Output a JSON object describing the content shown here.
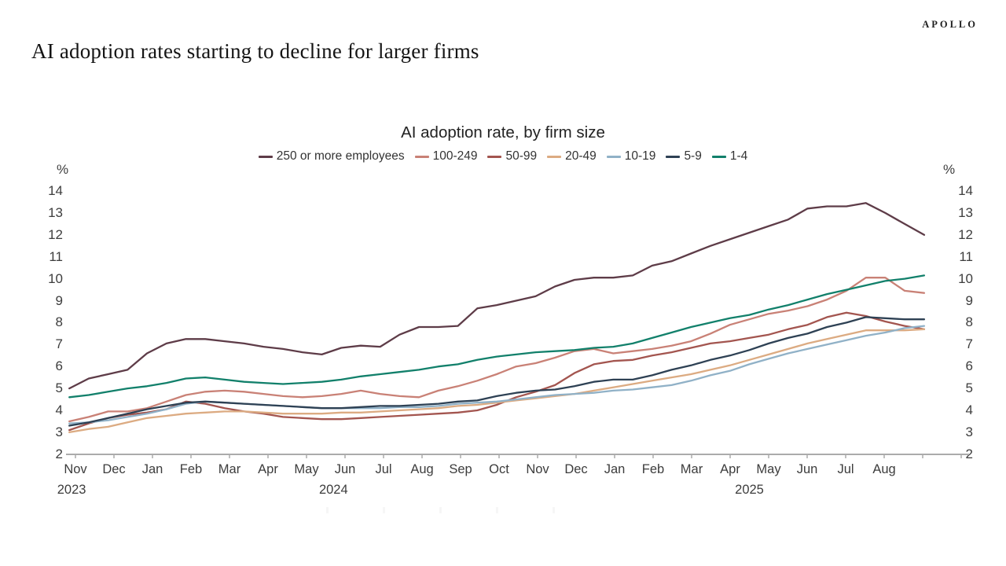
{
  "brand": "APOLLO",
  "page_title": "AI adoption rates starting to decline for larger firms",
  "chart_data": {
    "type": "line",
    "title": "AI adoption rate, by firm size",
    "y_axis_unit": "%",
    "ylim": [
      2,
      14
    ],
    "yticks": [
      14,
      13,
      12,
      11,
      10,
      9,
      8,
      7,
      6,
      5,
      4,
      3,
      2
    ],
    "grid": false,
    "legend_position": "top-center",
    "x_axis_note": "biweekly observations from Nov 2023 to late Aug 2025",
    "x_tick_months": [
      "Nov",
      "Dec",
      "Jan",
      "Feb",
      "Mar",
      "Apr",
      "May",
      "Jun",
      "Jul",
      "Aug",
      "Sep",
      "Oct",
      "Nov",
      "Dec",
      "Jan",
      "Feb",
      "Mar",
      "Apr",
      "May",
      "Jun",
      "Jul",
      "Aug"
    ],
    "x_year_labels": [
      {
        "label": "2023",
        "anchor_month_index": -0.1
      },
      {
        "label": "2024",
        "anchor_month_index": 6.7
      },
      {
        "label": "2025",
        "anchor_month_index": 17.5
      }
    ],
    "series": [
      {
        "name": "250 or more employees",
        "color": "#5e3c48",
        "values": [
          5.0,
          5.45,
          5.65,
          5.85,
          6.6,
          7.05,
          7.25,
          7.25,
          7.15,
          7.05,
          6.9,
          6.8,
          6.65,
          6.55,
          6.85,
          6.95,
          6.9,
          7.45,
          7.8,
          7.8,
          7.85,
          8.65,
          8.8,
          9.0,
          9.2,
          9.65,
          9.95,
          10.05,
          10.05,
          10.15,
          10.6,
          10.8,
          11.15,
          11.5,
          11.8,
          12.1,
          12.4,
          12.7,
          13.2,
          13.3,
          13.3,
          13.45,
          13.0,
          12.5,
          12.0
        ]
      },
      {
        "name": "100-249",
        "color": "#c98176",
        "values": [
          3.5,
          3.7,
          3.95,
          3.95,
          4.1,
          4.4,
          4.7,
          4.85,
          4.9,
          4.85,
          4.75,
          4.65,
          4.6,
          4.65,
          4.75,
          4.9,
          4.75,
          4.65,
          4.6,
          4.9,
          5.1,
          5.35,
          5.65,
          6.0,
          6.15,
          6.4,
          6.7,
          6.8,
          6.6,
          6.7,
          6.8,
          6.95,
          7.15,
          7.5,
          7.9,
          8.15,
          8.4,
          8.55,
          8.75,
          9.05,
          9.45,
          10.05,
          10.05,
          9.45,
          9.35
        ]
      },
      {
        "name": "50-99",
        "color": "#a3554f",
        "values": [
          3.1,
          3.4,
          3.65,
          3.8,
          3.9,
          4.05,
          4.4,
          4.3,
          4.1,
          3.95,
          3.85,
          3.7,
          3.65,
          3.6,
          3.6,
          3.65,
          3.7,
          3.75,
          3.8,
          3.85,
          3.9,
          4.0,
          4.25,
          4.6,
          4.85,
          5.15,
          5.7,
          6.1,
          6.25,
          6.3,
          6.5,
          6.65,
          6.85,
          7.05,
          7.15,
          7.3,
          7.45,
          7.7,
          7.9,
          8.25,
          8.45,
          8.3,
          8.05,
          7.85,
          7.7
        ]
      },
      {
        "name": "20-49",
        "color": "#dcab82",
        "values": [
          3.0,
          3.15,
          3.25,
          3.45,
          3.65,
          3.75,
          3.85,
          3.9,
          3.95,
          3.95,
          3.9,
          3.85,
          3.85,
          3.85,
          3.9,
          3.9,
          3.95,
          4.0,
          4.05,
          4.1,
          4.2,
          4.25,
          4.35,
          4.45,
          4.55,
          4.65,
          4.75,
          4.9,
          5.05,
          5.2,
          5.35,
          5.5,
          5.65,
          5.85,
          6.05,
          6.3,
          6.55,
          6.8,
          7.05,
          7.25,
          7.45,
          7.65,
          7.65,
          7.65,
          7.7
        ]
      },
      {
        "name": "10-19",
        "color": "#90b1c7",
        "values": [
          3.4,
          3.45,
          3.55,
          3.7,
          3.85,
          4.05,
          4.3,
          4.4,
          4.35,
          4.3,
          4.25,
          4.2,
          4.15,
          4.1,
          4.1,
          4.1,
          4.1,
          4.15,
          4.15,
          4.2,
          4.3,
          4.35,
          4.4,
          4.5,
          4.6,
          4.7,
          4.75,
          4.8,
          4.9,
          4.95,
          5.05,
          5.15,
          5.35,
          5.6,
          5.8,
          6.1,
          6.35,
          6.6,
          6.8,
          7.0,
          7.2,
          7.4,
          7.55,
          7.75,
          7.85
        ]
      },
      {
        "name": "5-9",
        "color": "#2e4154",
        "values": [
          3.3,
          3.45,
          3.65,
          3.85,
          4.05,
          4.2,
          4.35,
          4.4,
          4.35,
          4.3,
          4.25,
          4.2,
          4.15,
          4.1,
          4.1,
          4.15,
          4.2,
          4.2,
          4.25,
          4.3,
          4.4,
          4.45,
          4.65,
          4.8,
          4.9,
          4.95,
          5.1,
          5.3,
          5.4,
          5.4,
          5.6,
          5.85,
          6.05,
          6.3,
          6.5,
          6.75,
          7.05,
          7.3,
          7.5,
          7.8,
          8.0,
          8.25,
          8.2,
          8.15,
          8.15
        ]
      },
      {
        "name": "1-4",
        "color": "#12806b",
        "values": [
          4.6,
          4.7,
          4.85,
          5.0,
          5.1,
          5.25,
          5.45,
          5.5,
          5.4,
          5.3,
          5.25,
          5.2,
          5.25,
          5.3,
          5.4,
          5.55,
          5.65,
          5.75,
          5.85,
          6.0,
          6.1,
          6.3,
          6.45,
          6.55,
          6.65,
          6.7,
          6.75,
          6.85,
          6.9,
          7.05,
          7.3,
          7.55,
          7.8,
          8.0,
          8.2,
          8.35,
          8.6,
          8.8,
          9.05,
          9.3,
          9.5,
          9.7,
          9.9,
          10.0,
          10.15
        ]
      }
    ]
  }
}
